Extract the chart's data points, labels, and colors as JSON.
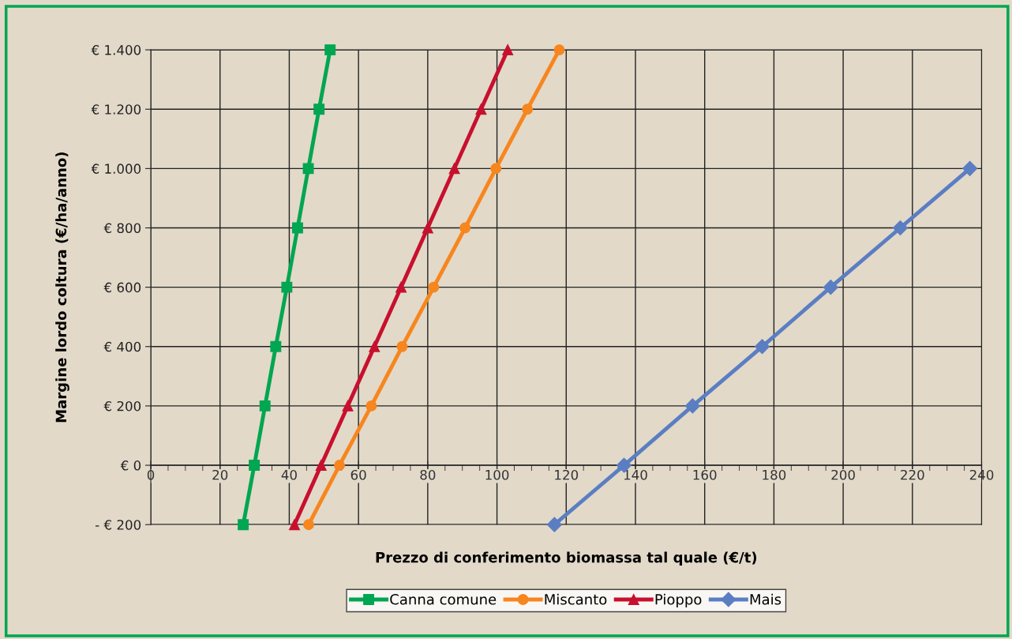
{
  "chart_data": {
    "type": "line",
    "xlabel": "Prezzo di conferimento biomassa tal quale (€/t)",
    "ylabel": "Margine lordo coltura (€/ha/anno)",
    "xlim": [
      0,
      240
    ],
    "xticks": [
      0,
      20,
      40,
      60,
      80,
      100,
      120,
      140,
      160,
      180,
      200,
      220,
      240
    ],
    "ylim": [
      -200,
      1400
    ],
    "yticks": [
      {
        "value": -200,
        "label": "- € 200"
      },
      {
        "value": 0,
        "label": "€ 0"
      },
      {
        "value": 200,
        "label": "€ 200"
      },
      {
        "value": 400,
        "label": "€ 400"
      },
      {
        "value": 600,
        "label": "€ 600"
      },
      {
        "value": 800,
        "label": "€ 800"
      },
      {
        "value": 1000,
        "label": "€ 1.000"
      },
      {
        "value": 1200,
        "label": "€ 1.200"
      },
      {
        "value": 1400,
        "label": "€ 1.400"
      }
    ],
    "grid": true,
    "legend": "bottom",
    "line_style": "solid",
    "series": [
      {
        "name": "Canna comune",
        "color": "#00a651",
        "marker": "square",
        "x": [
          26.7,
          29.9,
          33.0,
          36.1,
          39.3,
          42.4,
          45.5,
          48.6,
          51.8
        ],
        "values": [
          -200,
          0,
          200,
          400,
          600,
          800,
          1000,
          1200,
          1400
        ]
      },
      {
        "name": "Miscanto",
        "color": "#f7861e",
        "marker": "circle",
        "x": [
          45.6,
          54.5,
          63.7,
          72.6,
          81.7,
          90.8,
          99.7,
          108.8,
          118.0
        ],
        "values": [
          -200,
          0,
          200,
          400,
          600,
          800,
          1000,
          1200,
          1400
        ]
      },
      {
        "name": "Pioppo",
        "color": "#c8102e",
        "marker": "triangle",
        "x": [
          41.5,
          49.2,
          56.9,
          64.6,
          72.3,
          80.0,
          87.7,
          95.4,
          103.1
        ],
        "values": [
          -200,
          0,
          200,
          400,
          600,
          800,
          1000,
          1200,
          1400
        ]
      },
      {
        "name": "Mais",
        "color": "#5b7ec2",
        "marker": "diamond",
        "x": [
          116.6,
          136.7,
          156.5,
          176.6,
          196.4,
          216.5,
          236.6
        ],
        "values": [
          -200,
          0,
          200,
          400,
          600,
          800,
          1000
        ]
      }
    ]
  }
}
